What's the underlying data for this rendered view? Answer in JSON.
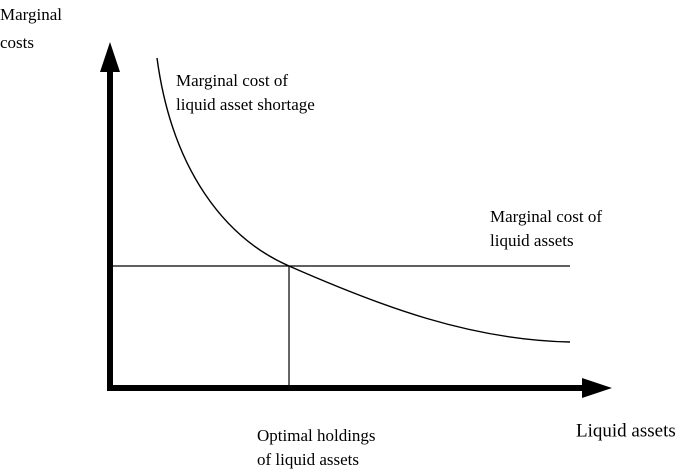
{
  "y_axis": {
    "label": [
      "Marginal",
      "costs"
    ]
  },
  "x_axis": {
    "label": "Liquid assets"
  },
  "curves": [
    {
      "label": [
        "Marginal cost of",
        "liquid asset shortage"
      ]
    },
    {
      "label": [
        "Marginal cost of",
        "liquid assets"
      ]
    }
  ],
  "optimum": {
    "label": [
      "Optimal holdings",
      "of liquid assets"
    ]
  }
}
